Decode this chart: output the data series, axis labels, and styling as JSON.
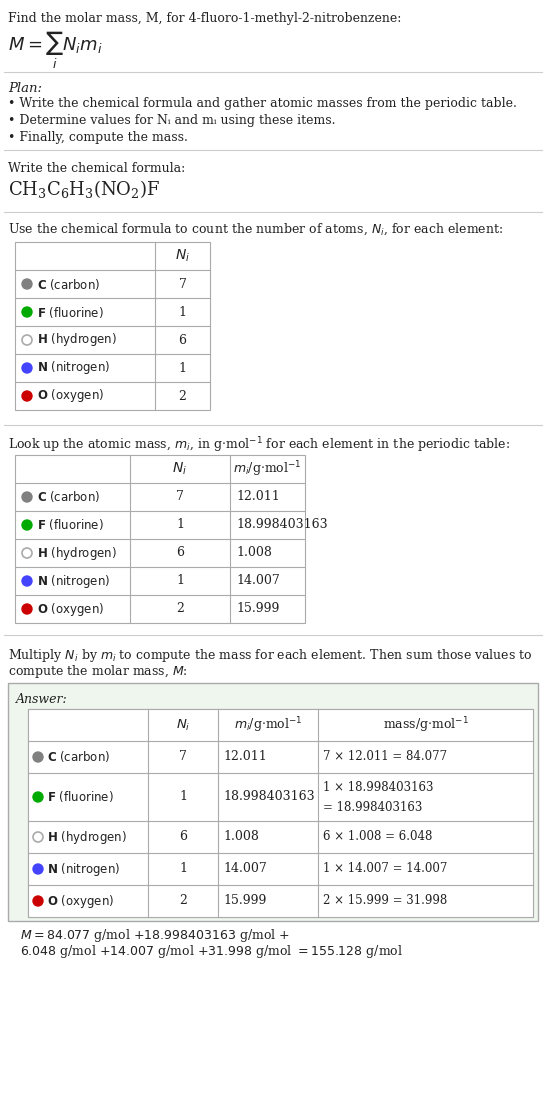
{
  "title": "Find the molar mass, M, for 4-fluoro-1-methyl-2-nitrobenzene:",
  "formula_eq": "M = Σ Nᵢmᵢ",
  "formula_eq_sub": "i",
  "plan_header": "Plan:",
  "plan_bullets": [
    "• Write the chemical formula and gather atomic masses from the periodic table.",
    "• Determine values for Nᵢ and mᵢ using these items.",
    "• Finally, compute the mass."
  ],
  "formula_label": "Write the chemical formula:",
  "chemical_formula": "CH₃C₆H₃(NO₂)F",
  "count_label": "Use the chemical formula to count the number of atoms, Nᵢ, for each element:",
  "mass_label": "Look up the atomic mass, mᵢ, in g·mol⁻¹ for each element in the periodic table:",
  "multiply_label": "Multiply Nᵢ by mᵢ to compute the mass for each element. Then sum those values to\ncompute the molar mass, M:",
  "elements": [
    {
      "symbol": "C",
      "name": "carbon",
      "N": 7,
      "m": "12.011",
      "mass_eq": "7 × 12.011 = 84.077",
      "color": "#808080",
      "filled": true
    },
    {
      "symbol": "F",
      "name": "fluorine",
      "N": 1,
      "m": "18.998403163",
      "mass_eq": "1 × 18.998403163\n= 18.998403163",
      "color": "#00aa00",
      "filled": true
    },
    {
      "symbol": "H",
      "name": "hydrogen",
      "N": 6,
      "m": "1.008",
      "mass_eq": "6 × 1.008 = 6.048",
      "color": "#aaaaaa",
      "filled": false
    },
    {
      "symbol": "N",
      "name": "nitrogen",
      "N": 1,
      "m": "14.007",
      "mass_eq": "1 × 14.007 = 14.007",
      "color": "#4444ff",
      "filled": true
    },
    {
      "symbol": "O",
      "name": "oxygen",
      "N": 2,
      "m": "15.999",
      "mass_eq": "2 × 15.999 = 31.998",
      "color": "#cc0000",
      "filled": true
    }
  ],
  "answer_box_color": "#e8f4e8",
  "answer_box_border": "#aaaaaa",
  "final_eq_line1": "M = 84.077 g/mol + 18.998403163 g/mol +",
  "final_eq_line2": "6.048 g/mol + 14.007 g/mol + 31.998 g/mol = 155.128 g/mol",
  "bg_color": "#ffffff",
  "text_color": "#222222",
  "separator_color": "#cccccc"
}
